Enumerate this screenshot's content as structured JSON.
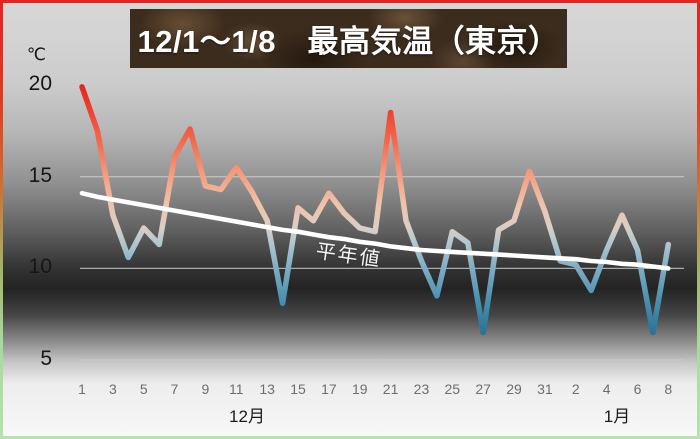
{
  "title_banner": {
    "text": "12/1〜1/8　最高気温（東京）"
  },
  "y_axis": {
    "unit": "℃",
    "ticks": [
      "20",
      "15",
      "10",
      "5"
    ]
  },
  "x_axis": {
    "ticks": [
      "1",
      "3",
      "5",
      "7",
      "9",
      "11",
      "13",
      "15",
      "17",
      "19",
      "21",
      "23",
      "25",
      "27",
      "29",
      "31",
      "2",
      "4",
      "6",
      "8"
    ],
    "month_left": "12月",
    "month_right": "1月"
  },
  "annotations": {
    "normal_line_label": "平年値"
  },
  "chart_data": {
    "type": "line",
    "title": "12/1〜1/8 最高気温（東京）",
    "ylabel": "℃",
    "ylim": [
      5,
      20
    ],
    "grid": "horizontal",
    "legend": "none",
    "x": [
      "12/1",
      "12/2",
      "12/3",
      "12/4",
      "12/5",
      "12/6",
      "12/7",
      "12/8",
      "12/9",
      "12/10",
      "12/11",
      "12/12",
      "12/13",
      "12/14",
      "12/15",
      "12/16",
      "12/17",
      "12/18",
      "12/19",
      "12/20",
      "12/21",
      "12/22",
      "12/23",
      "12/24",
      "12/25",
      "12/26",
      "12/27",
      "12/28",
      "12/29",
      "12/30",
      "12/31",
      "1/1",
      "1/2",
      "1/3",
      "1/4",
      "1/5",
      "1/6",
      "1/7",
      "1/8"
    ],
    "series": [
      {
        "name": "最高気温",
        "values": [
          19.9,
          17.5,
          12.9,
          10.6,
          12.2,
          11.3,
          16.1,
          17.6,
          14.5,
          14.3,
          15.5,
          14.2,
          12.6,
          8.1,
          13.3,
          12.6,
          14.1,
          13.0,
          12.2,
          12.0,
          18.5,
          12.6,
          10.4,
          8.5,
          12.0,
          11.4,
          6.5,
          12.1,
          12.6,
          15.3,
          13.1,
          10.4,
          10.2,
          8.8,
          11.0,
          12.9,
          11.0,
          6.5,
          11.3
        ]
      },
      {
        "name": "平年値",
        "values": [
          14.1,
          13.9,
          13.75,
          13.6,
          13.45,
          13.3,
          13.15,
          13.0,
          12.85,
          12.7,
          12.55,
          12.4,
          12.25,
          12.1,
          12.0,
          11.85,
          11.7,
          11.6,
          11.45,
          11.35,
          11.2,
          11.1,
          11.0,
          10.95,
          10.9,
          10.85,
          10.8,
          10.75,
          10.7,
          10.65,
          10.6,
          10.55,
          10.5,
          10.4,
          10.35,
          10.25,
          10.2,
          10.1,
          10.0
        ]
      }
    ]
  },
  "colors": {
    "border_top": "#e42320",
    "border_bottom": "#b6e2ae",
    "banner_bg": "#3c2c1d",
    "banner_text": "#ffffff",
    "high_temp": "#e01c1c",
    "mid_temp": "#d9cfc6",
    "low_temp": "#14607f",
    "normal_line": "#ffffff",
    "gridline": "#c9c9c9",
    "tick_text": "#6e6e6e"
  }
}
